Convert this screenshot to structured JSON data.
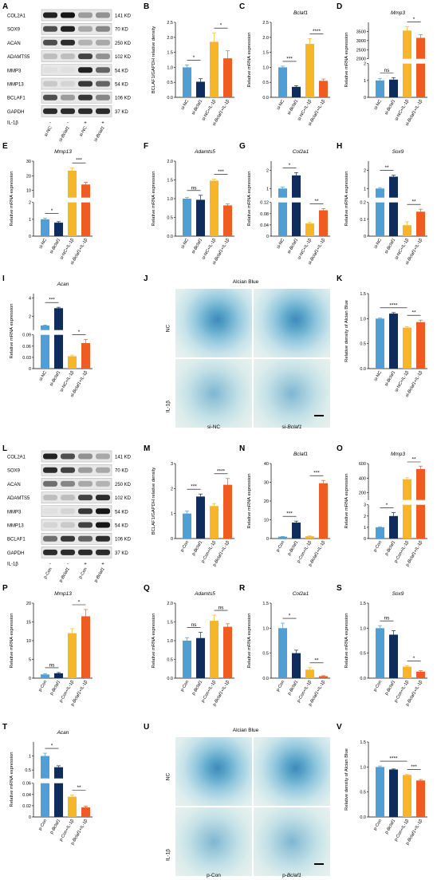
{
  "panels": {
    "A": {
      "label": "A"
    },
    "B": {
      "label": "B"
    },
    "C": {
      "label": "C"
    },
    "D": {
      "label": "D"
    },
    "E": {
      "label": "E"
    },
    "F": {
      "label": "F"
    },
    "G": {
      "label": "G"
    },
    "H": {
      "label": "H"
    },
    "I": {
      "label": "I"
    },
    "J": {
      "label": "J"
    },
    "K": {
      "label": "K"
    },
    "L": {
      "label": "L"
    },
    "M": {
      "label": "M"
    },
    "N": {
      "label": "N"
    },
    "O": {
      "label": "O"
    },
    "P": {
      "label": "P"
    },
    "Q": {
      "label": "Q"
    },
    "R": {
      "label": "R"
    },
    "S": {
      "label": "S"
    },
    "T": {
      "label": "T"
    },
    "U": {
      "label": "U"
    },
    "V": {
      "label": "V"
    }
  },
  "colors": {
    "c1": "#4f9fd4",
    "c2": "#0e2d5c",
    "c3": "#f7b529",
    "c4": "#ef5b22"
  },
  "blots": [
    {
      "name": "A",
      "proteins": [
        "COL2A1",
        "SOX9",
        "ACAN",
        "ADAMTS5",
        "MMP3",
        "MMP13",
        "BCLAF1",
        "GAPDH"
      ],
      "sizes": [
        "141 KD",
        "70 KD",
        "250 KD",
        "102 KD",
        "54 KD",
        "54 KD",
        "106 KD",
        "37 KD"
      ],
      "treatment_label": "IL-1β",
      "treatment_signs": [
        "-",
        "-",
        "+",
        "+"
      ],
      "groups": [
        "si-NC",
        "si-Bclaf1",
        "si-NC",
        "si-Bclaf1"
      ],
      "intensity": [
        [
          0.9,
          0.95,
          0.35,
          0.4
        ],
        [
          0.7,
          0.9,
          0.3,
          0.45
        ],
        [
          0.7,
          0.85,
          0.25,
          0.3
        ],
        [
          0.2,
          0.2,
          0.75,
          0.4
        ],
        [
          0.05,
          0.05,
          0.9,
          0.6
        ],
        [
          0.15,
          0.1,
          0.8,
          0.6
        ],
        [
          0.7,
          0.35,
          0.8,
          0.45
        ],
        [
          0.85,
          0.85,
          0.85,
          0.85
        ]
      ]
    },
    {
      "name": "L",
      "proteins": [
        "COL2A1",
        "SOX9",
        "ACAN",
        "ADAMTS5",
        "MMP3",
        "MMP13",
        "BCLAF1",
        "GAPDH"
      ],
      "sizes": [
        "141 KD",
        "70 KD",
        "250 KD",
        "102 KD",
        "54 KD",
        "54 KD",
        "106 KD",
        "37 KD"
      ],
      "treatment_label": "IL-1β",
      "treatment_signs": [
        "-",
        "-",
        "+",
        "+"
      ],
      "groups": [
        "p-Con",
        "p-Bclaf1",
        "p-Con",
        "p-Bclaf1"
      ],
      "intensity": [
        [
          0.9,
          0.7,
          0.4,
          0.3
        ],
        [
          0.85,
          0.75,
          0.35,
          0.3
        ],
        [
          0.55,
          0.45,
          0.3,
          0.25
        ],
        [
          0.2,
          0.2,
          0.75,
          0.85
        ],
        [
          0.05,
          0.1,
          0.8,
          0.95
        ],
        [
          0.1,
          0.15,
          0.75,
          0.95
        ],
        [
          0.55,
          0.8,
          0.6,
          0.85
        ],
        [
          0.85,
          0.85,
          0.85,
          0.85
        ]
      ]
    }
  ],
  "stains": [
    {
      "name": "J",
      "title": "Alcian Blue",
      "rows": [
        "NC",
        "IL-1β"
      ],
      "cols": [
        "si-NC",
        "si-Bclaf1"
      ]
    },
    {
      "name": "U",
      "title": "Alcian Blue",
      "rows": [
        "NC",
        "IL-1β"
      ],
      "cols": [
        "p-Con",
        "p-Bclaf1"
      ]
    }
  ],
  "chart_data": [
    {
      "panel": "B",
      "type": "bar",
      "title": "",
      "ylabel": "BCLAF1/GAPDH relative density",
      "categories": [
        "si-NC",
        "si-Bclaf1",
        "si-NC+IL-1β",
        "si-Bclaf1+IL-1β"
      ],
      "values": [
        1.0,
        0.52,
        1.85,
        1.3
      ],
      "errors": [
        0.08,
        0.1,
        0.3,
        0.25
      ],
      "ylim": [
        0,
        2.5
      ],
      "yticks": [
        0,
        0.5,
        1.0,
        1.5,
        2.0,
        2.5
      ],
      "tick_fmt": 1,
      "sig": [
        {
          "from": 0,
          "to": 1,
          "text": "*"
        },
        {
          "from": 2,
          "to": 3,
          "text": "*"
        }
      ]
    },
    {
      "panel": "C",
      "type": "bar",
      "title": "Bclaf1",
      "ylabel": "Relative mRNA expression",
      "categories": [
        "si-NC",
        "si-Bclaf1",
        "si-NC+IL-1β",
        "si-Bclaf1+IL-1β"
      ],
      "values": [
        1.0,
        0.35,
        1.78,
        0.55
      ],
      "errors": [
        0.04,
        0.04,
        0.18,
        0.06
      ],
      "ylim": [
        0,
        2.5
      ],
      "yticks": [
        0,
        0.5,
        1.0,
        1.5,
        2.0,
        2.5
      ],
      "tick_fmt": 1,
      "sig": [
        {
          "from": 0,
          "to": 1,
          "text": "***"
        },
        {
          "from": 2,
          "to": 3,
          "text": "****"
        }
      ]
    },
    {
      "panel": "D",
      "type": "bar",
      "title": "Mmp3",
      "ylabel": "Relative mRNA expression",
      "categories": [
        "si-NC",
        "si-Bclaf1",
        "si-NC+IL-1β",
        "si-Bclaf1+IL-1β"
      ],
      "values": [
        1.0,
        1.05,
        3550,
        3150
      ],
      "errors": [
        0.1,
        0.12,
        200,
        180
      ],
      "break": {
        "low": [
          0,
          2
        ],
        "high": [
          2000,
          4000
        ]
      },
      "yticks_low": [
        0,
        1,
        2
      ],
      "yticks_high": [
        2000,
        2500,
        3000,
        3500
      ],
      "sig": [
        {
          "from": 0,
          "to": 1,
          "text": "ns"
        },
        {
          "from": 2,
          "to": 3,
          "text": "*"
        }
      ]
    },
    {
      "panel": "E",
      "type": "bar",
      "title": "Mmp13",
      "ylabel": "Relative mRNA expression",
      "categories": [
        "si-NC",
        "si-Bclaf1",
        "si-NC+IL-1β",
        "si-Bclaf1+IL-1β"
      ],
      "values": [
        1.0,
        0.8,
        23.5,
        14.0
      ],
      "errors": [
        0.06,
        0.06,
        2.0,
        1.5
      ],
      "break": {
        "low": [
          0,
          2
        ],
        "high": [
          5,
          30
        ]
      },
      "yticks_low": [
        0,
        1,
        2
      ],
      "yticks_high": [
        10,
        20,
        30
      ],
      "sig": [
        {
          "from": 0,
          "to": 1,
          "text": "*"
        },
        {
          "from": 2,
          "to": 3,
          "text": "***"
        }
      ]
    },
    {
      "panel": "F",
      "type": "bar",
      "title": "Adamts5",
      "ylabel": "Relative mRNA expression",
      "categories": [
        "si-NC",
        "si-Bclaf1",
        "si-NC+IL-1β",
        "si-Bclaf1+IL-1β"
      ],
      "values": [
        1.0,
        0.97,
        1.48,
        0.82
      ],
      "errors": [
        0.03,
        0.12,
        0.04,
        0.04
      ],
      "ylim": [
        0,
        2.0
      ],
      "yticks": [
        0,
        0.5,
        1.0,
        1.5,
        2.0
      ],
      "tick_fmt": 1,
      "sig": [
        {
          "from": 0,
          "to": 1,
          "text": "ns"
        },
        {
          "from": 2,
          "to": 3,
          "text": "***"
        }
      ]
    },
    {
      "panel": "G",
      "type": "bar",
      "title": "Col2a1",
      "ylabel": "Relative mRNA expression",
      "categories": [
        "si-NC",
        "si-Bclaf1",
        "si-NC+IL-1β",
        "si-Bclaf1+IL-1β"
      ],
      "values": [
        1.0,
        1.72,
        0.045,
        0.092
      ],
      "errors": [
        0.08,
        0.15,
        0.004,
        0.006
      ],
      "break": {
        "low": [
          0,
          0.12
        ],
        "high": [
          0.5,
          2.5
        ]
      },
      "yticks_low": [
        0,
        0.04,
        0.08,
        0.12
      ],
      "yticks_high": [
        1.0,
        2.0
      ],
      "sig": [
        {
          "from": 0,
          "to": 1,
          "text": "*"
        },
        {
          "from": 2,
          "to": 3,
          "text": "**"
        }
      ]
    },
    {
      "panel": "H",
      "type": "bar",
      "title": "Sox9",
      "ylabel": "Relative mRNA expression",
      "categories": [
        "si-NC",
        "si-Bclaf1",
        "si-NC+IL-1β",
        "si-Bclaf1+IL-1β"
      ],
      "values": [
        1.0,
        1.65,
        0.065,
        0.145
      ],
      "errors": [
        0.05,
        0.08,
        0.02,
        0.015
      ],
      "break": {
        "low": [
          0,
          0.2
        ],
        "high": [
          0.5,
          2.5
        ]
      },
      "yticks_low": [
        0,
        0.1,
        0.2
      ],
      "yticks_high": [
        1,
        2
      ],
      "sig": [
        {
          "from": 0,
          "to": 1,
          "text": "**"
        },
        {
          "from": 2,
          "to": 3,
          "text": "**"
        }
      ]
    },
    {
      "panel": "I",
      "type": "bar",
      "title": "Acan",
      "ylabel": "Relative mRNA expression",
      "categories": [
        "si-NC",
        "si-Bclaf1",
        "si-NC+IL-1β",
        "si-Bclaf1+IL-1β"
      ],
      "values": [
        1.0,
        2.9,
        0.033,
        0.068
      ],
      "errors": [
        0.05,
        0.1,
        0.003,
        0.01
      ],
      "break": {
        "low": [
          0,
          0.09
        ],
        "high": [
          0.5,
          4.5
        ]
      },
      "yticks_low": [
        0,
        0.03,
        0.06,
        0.09
      ],
      "yticks_high": [
        2,
        4
      ],
      "sig": [
        {
          "from": 0,
          "to": 1,
          "text": "***"
        },
        {
          "from": 2,
          "to": 3,
          "text": "*"
        }
      ]
    },
    {
      "panel": "K",
      "type": "bar",
      "title": "",
      "ylabel": "Relative density of Alcian Blue",
      "categories": [
        "si-NC",
        "si-Bclaf1",
        "si-NC+IL-1β",
        "si-Bclaf1+IL-1β"
      ],
      "values": [
        1.0,
        1.1,
        0.82,
        0.93
      ],
      "errors": [
        0.01,
        0.02,
        0.02,
        0.04
      ],
      "ylim": [
        0,
        1.5
      ],
      "yticks": [
        0,
        0.5,
        1.0,
        1.5
      ],
      "tick_fmt": 1,
      "sig": [
        {
          "from": 0,
          "to": 2,
          "text": "****"
        },
        {
          "from": 2,
          "to": 3,
          "text": "**"
        }
      ]
    },
    {
      "panel": "M",
      "type": "bar",
      "title": "",
      "ylabel": "BCLAF1/GAPDH relative density",
      "categories": [
        "p-Con",
        "p-Bclaf1",
        "p-Con+IL-1β",
        "p-Bclaf1+IL-1β"
      ],
      "values": [
        1.0,
        1.68,
        1.3,
        2.15
      ],
      "errors": [
        0.1,
        0.1,
        0.1,
        0.25
      ],
      "ylim": [
        0,
        3
      ],
      "yticks": [
        0,
        1,
        2,
        3
      ],
      "tick_fmt": 0,
      "sig": [
        {
          "from": 0,
          "to": 1,
          "text": "***"
        },
        {
          "from": 2,
          "to": 3,
          "text": "****"
        }
      ]
    },
    {
      "panel": "N",
      "type": "bar",
      "title": "Bclaf1",
      "ylabel": "Relative mRNA expression",
      "categories": [
        "p-Con",
        "p-Bclaf1",
        "p-Con+IL-1β",
        "p-Bclaf1+IL-1β"
      ],
      "values": [
        1.0,
        8.5,
        1.2,
        29.5
      ],
      "errors": [
        0.1,
        0.8,
        0.2,
        1.5
      ],
      "ylim": [
        0,
        40
      ],
      "yticks": [
        0,
        10,
        20,
        30,
        40
      ],
      "tick_fmt": 0,
      "sig": [
        {
          "from": 0,
          "to": 1,
          "text": "***"
        },
        {
          "from": 2,
          "to": 3,
          "text": "***"
        }
      ]
    },
    {
      "panel": "O",
      "type": "bar",
      "title": "Mmp3",
      "ylabel": "Relative mRNA expression",
      "categories": [
        "p-Con",
        "p-Bclaf1",
        "p-Con+IL-1β",
        "p-Bclaf1+IL-1β"
      ],
      "values": [
        1.0,
        2.0,
        385,
        525
      ],
      "errors": [
        0.05,
        0.3,
        20,
        40
      ],
      "break": {
        "low": [
          0,
          3
        ],
        "high": [
          100,
          600
        ]
      },
      "yticks_low": [
        0,
        1,
        2,
        3
      ],
      "yticks_high": [
        200,
        400,
        600
      ],
      "sig": [
        {
          "from": 0,
          "to": 1,
          "text": "*"
        },
        {
          "from": 2,
          "to": 3,
          "text": "**"
        }
      ]
    },
    {
      "panel": "P",
      "type": "bar",
      "title": "Mmp13",
      "ylabel": "Relative mRNA expression",
      "categories": [
        "p-Con",
        "p-Bclaf1",
        "p-Con+IL-1β",
        "p-Bclaf1+IL-1β"
      ],
      "values": [
        1.0,
        1.3,
        12.0,
        16.5
      ],
      "errors": [
        0.2,
        0.2,
        1.2,
        1.8
      ],
      "ylim": [
        0,
        20
      ],
      "yticks": [
        0,
        5,
        10,
        15,
        20
      ],
      "tick_fmt": 0,
      "sig": [
        {
          "from": 0,
          "to": 1,
          "text": "ns"
        },
        {
          "from": 2,
          "to": 3,
          "text": "*"
        }
      ]
    },
    {
      "panel": "Q",
      "type": "bar",
      "title": "Adamts5",
      "ylabel": "Relative mRNA expression",
      "categories": [
        "p-Con",
        "p-Bclaf1",
        "p-Con+IL-1β",
        "p-Bclaf1+IL-1β"
      ],
      "values": [
        1.0,
        1.07,
        1.53,
        1.37
      ],
      "errors": [
        0.08,
        0.15,
        0.15,
        0.08
      ],
      "ylim": [
        0,
        2.0
      ],
      "yticks": [
        0,
        0.5,
        1.0,
        1.5,
        2.0
      ],
      "tick_fmt": 1,
      "sig": [
        {
          "from": 0,
          "to": 1,
          "text": "ns"
        },
        {
          "from": 2,
          "to": 3,
          "text": "ns"
        }
      ]
    },
    {
      "panel": "R",
      "type": "bar",
      "title": "Col2a1",
      "ylabel": "Relative mRNA expression",
      "categories": [
        "p-Con",
        "p-Bclaf1",
        "p-Con+IL-1β",
        "p-Bclaf1+IL-1β"
      ],
      "values": [
        1.0,
        0.5,
        0.17,
        0.04
      ],
      "errors": [
        0.1,
        0.06,
        0.04,
        0.01
      ],
      "ylim": [
        0,
        1.5
      ],
      "yticks": [
        0,
        0.5,
        1.0,
        1.5
      ],
      "tick_fmt": 1,
      "sig": [
        {
          "from": 0,
          "to": 1,
          "text": "*"
        },
        {
          "from": 2,
          "to": 3,
          "text": "**"
        }
      ]
    },
    {
      "panel": "S",
      "type": "bar",
      "title": "Sox9",
      "ylabel": "Relative mRNA expression",
      "categories": [
        "p-Con",
        "p-Bclaf1",
        "p-Con+IL-1β",
        "p-Bclaf1+IL-1β"
      ],
      "values": [
        1.0,
        0.87,
        0.23,
        0.13
      ],
      "errors": [
        0.05,
        0.08,
        0.02,
        0.02
      ],
      "ylim": [
        0,
        1.5
      ],
      "yticks": [
        0,
        0.5,
        1.0,
        1.5
      ],
      "tick_fmt": 1,
      "sig": [
        {
          "from": 0,
          "to": 1,
          "text": "ns"
        },
        {
          "from": 2,
          "to": 3,
          "text": "*"
        }
      ]
    },
    {
      "panel": "T",
      "type": "bar",
      "title": "Acan",
      "ylabel": "Relative mRNA expression",
      "categories": [
        "p-Con",
        "p-Bclaf1",
        "p-Con+IL-1β",
        "p-Bclaf1+IL-1β"
      ],
      "values": [
        1.0,
        0.6,
        0.036,
        0.017
      ],
      "errors": [
        0.1,
        0.05,
        0.003,
        0.002
      ],
      "break": {
        "low": [
          0,
          0.06
        ],
        "high": [
          0.2,
          1.5
        ]
      },
      "yticks_low": [
        0,
        0.02,
        0.04,
        0.06
      ],
      "yticks_high": [
        0.5,
        1.0
      ],
      "sig": [
        {
          "from": 0,
          "to": 1,
          "text": "*"
        },
        {
          "from": 2,
          "to": 3,
          "text": "**"
        }
      ]
    },
    {
      "panel": "V",
      "type": "bar",
      "title": "",
      "ylabel": "Relative density of Alcian Blue",
      "categories": [
        "p-Con",
        "p-Bclaf1",
        "p-Con+IL-1β",
        "p-Bclaf1+IL-1β"
      ],
      "values": [
        1.0,
        0.95,
        0.84,
        0.73
      ],
      "errors": [
        0.02,
        0.01,
        0.01,
        0.02
      ],
      "ylim": [
        0,
        1.5
      ],
      "yticks": [
        0,
        0.5,
        1.0,
        1.5
      ],
      "tick_fmt": 1,
      "sig": [
        {
          "from": 0,
          "to": 2,
          "text": "****"
        },
        {
          "from": 2,
          "to": 3,
          "text": "***"
        }
      ]
    }
  ]
}
